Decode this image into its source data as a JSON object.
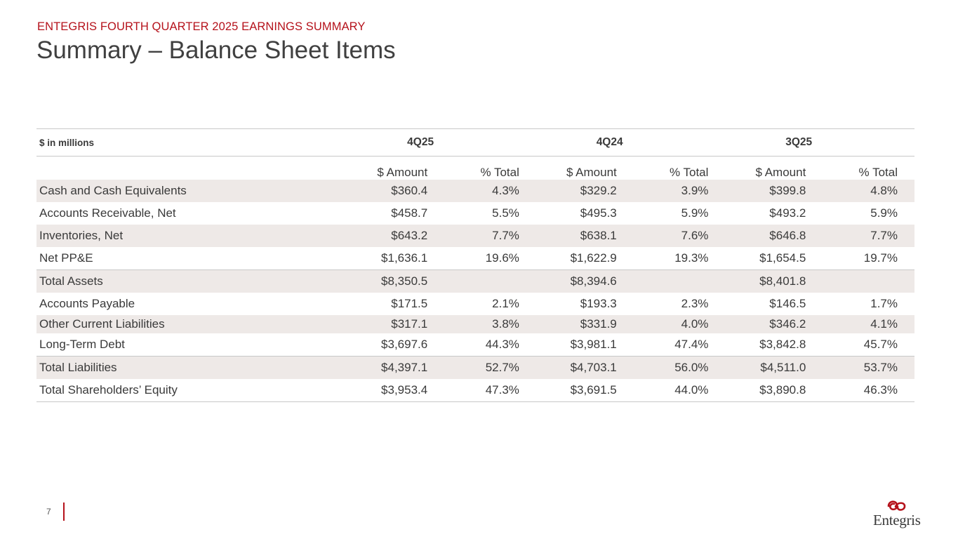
{
  "header": {
    "kicker": "ENTEGRIS FOURTH QUARTER 2025 EARNINGS SUMMARY",
    "title": "Summary – Balance Sheet Items"
  },
  "table": {
    "units_label": "$ in millions",
    "periods": [
      "4Q25",
      "4Q24",
      "3Q25"
    ],
    "subheaders": [
      "$ Amount",
      "% Total",
      "$ Amount",
      "% Total",
      "$ Amount",
      "% Total"
    ],
    "rows": [
      {
        "label": "Cash and Cash Equivalents",
        "cells": [
          "$360.4",
          "4.3%",
          "$329.2",
          "3.9%",
          "$399.8",
          "4.8%"
        ]
      },
      {
        "label": "Accounts Receivable, Net",
        "cells": [
          "$458.7",
          "5.5%",
          "$495.3",
          "5.9%",
          "$493.2",
          "5.9%"
        ]
      },
      {
        "label": "Inventories, Net",
        "cells": [
          "$643.2",
          "7.7%",
          "$638.1",
          "7.6%",
          "$646.8",
          "7.7%"
        ]
      },
      {
        "label": "Net PP&E",
        "cells": [
          "$1,636.1",
          "19.6%",
          "$1,622.9",
          "19.3%",
          "$1,654.5",
          "19.7%"
        ]
      },
      {
        "label": "Total Assets",
        "cells": [
          "$8,350.5",
          "",
          "$8,394.6",
          "",
          "$8,401.8",
          ""
        ]
      },
      {
        "label": "Accounts Payable",
        "cells": [
          "$171.5",
          "2.1%",
          "$193.3",
          "2.3%",
          "$146.5",
          "1.7%"
        ]
      },
      {
        "label": "Other Current Liabilities",
        "cells": [
          "$317.1",
          "3.8%",
          "$331.9",
          "4.0%",
          "$346.2",
          "4.1%"
        ]
      },
      {
        "label": "Long-Term Debt",
        "cells": [
          "$3,697.6",
          "44.3%",
          "$3,981.1",
          "47.4%",
          "$3,842.8",
          "45.7%"
        ]
      },
      {
        "label": "Total Liabilities",
        "cells": [
          "$4,397.1",
          "52.7%",
          "$4,703.1",
          "56.0%",
          "$4,511.0",
          "53.7%"
        ]
      },
      {
        "label": "Total Shareholders’ Equity",
        "cells": [
          "$3,953.4",
          "47.3%",
          "$3,691.5",
          "44.0%",
          "$3,890.8",
          "46.3%"
        ]
      }
    ]
  },
  "footer": {
    "page_number": "7",
    "logo_text": "Entegris",
    "logo_icon": "entegris-logo-icon"
  },
  "colors": {
    "accent_red": "#b5121b",
    "row_shade": "#eee9e7",
    "text": "#3a3a3a"
  }
}
